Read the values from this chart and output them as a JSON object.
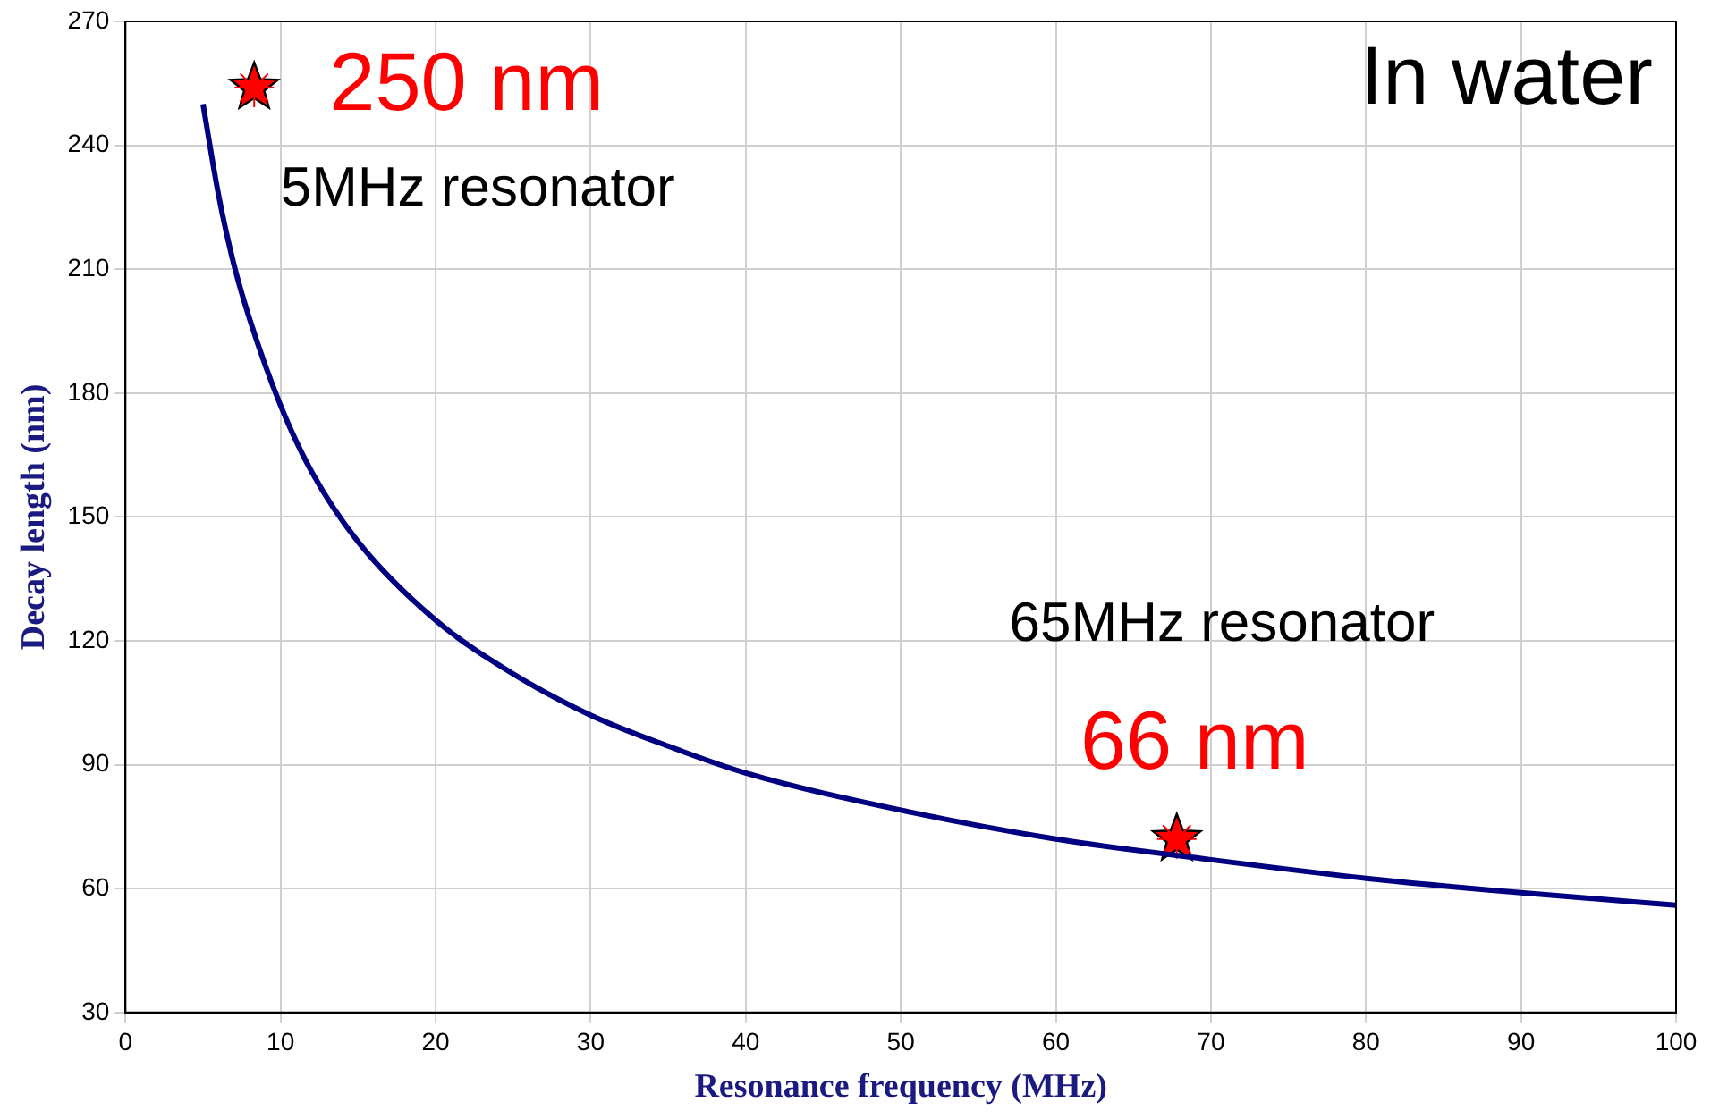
{
  "chart_data": {
    "type": "line",
    "xlabel": "Resonance frequency (MHz)",
    "ylabel": "Decay length (nm)",
    "xlim": [
      0,
      100
    ],
    "xticks": [
      0,
      10,
      20,
      30,
      40,
      50,
      60,
      70,
      80,
      90,
      100
    ],
    "ylim": [
      30,
      270
    ],
    "yticks": [
      30,
      60,
      90,
      120,
      150,
      180,
      210,
      240,
      270
    ],
    "grid": true,
    "legend": false,
    "series": [
      {
        "color": "#000080",
        "marker": "none",
        "x": [
          5,
          6,
          7,
          8,
          10,
          12,
          15,
          20,
          25,
          30,
          35,
          40,
          50,
          60,
          70,
          80,
          90,
          100
        ],
        "values": [
          250,
          228,
          211,
          198,
          177,
          161,
          144,
          125,
          112,
          102,
          94.5,
          88,
          79,
          72,
          67,
          62.5,
          59,
          56
        ]
      },
      {
        "type": "scatter",
        "color": "#ff0000",
        "marker": "star",
        "x": [
          8.3,
          67.8
        ],
        "values": [
          254,
          72
        ]
      }
    ],
    "annotations": [
      {
        "text": "250 nm",
        "x": 8.3,
        "y": 254
      },
      {
        "text": "66 nm",
        "x": 67.8,
        "y": 72
      },
      "5MHz resonator",
      "65MHz resonator",
      "In water"
    ]
  }
}
